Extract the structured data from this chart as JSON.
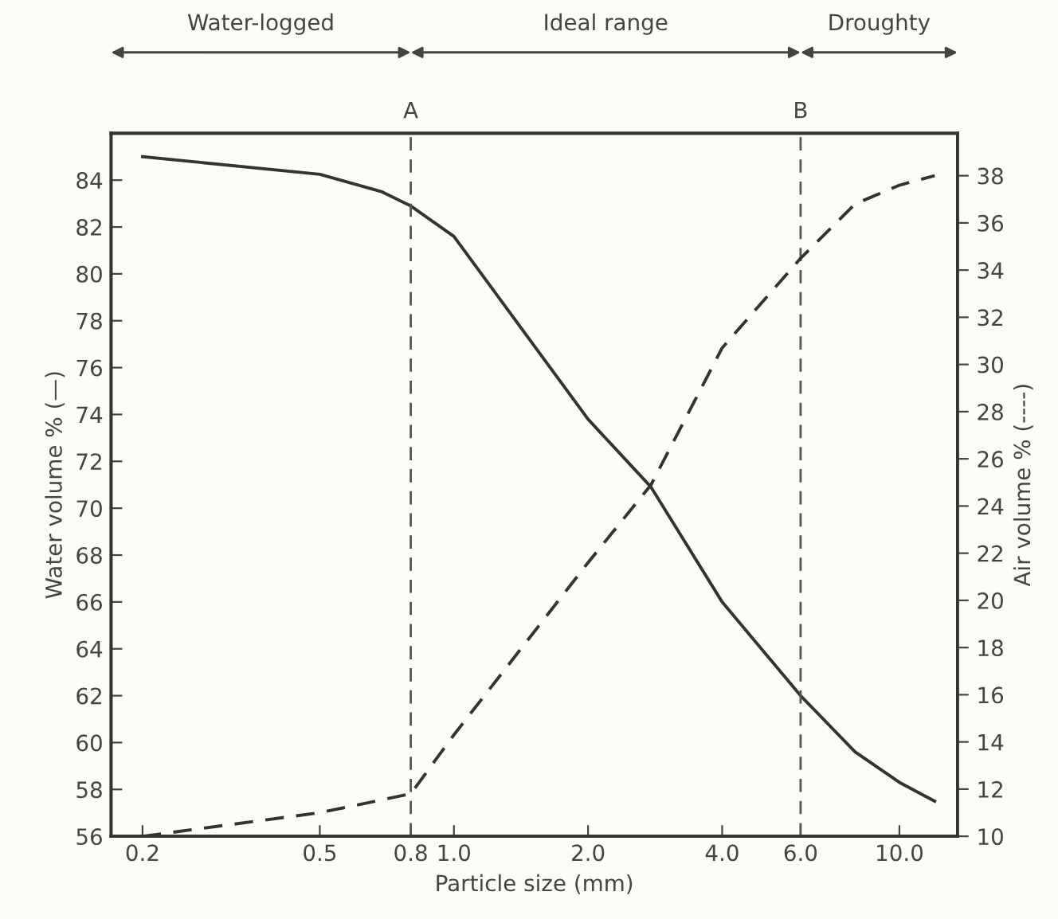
{
  "chart_data": {
    "type": "line",
    "xlabel": "Particle size (mm)",
    "ylabel": "Water volume % (—)",
    "y2label": "Air volume % (----)",
    "log": "x",
    "xlim": [
      0.17,
      13.5
    ],
    "xticks": [
      0.2,
      0.5,
      {
        "value": 0.8,
        "label": "0.8"
      },
      {
        "value": 1.0,
        "label": "1.0"
      },
      {
        "value": 2.0,
        "label": "2.0"
      },
      {
        "value": 4.0,
        "label": "4.0"
      },
      {
        "value": 6.0,
        "label": "6.0"
      },
      {
        "value": 10.0,
        "label": "10.0"
      }
    ],
    "ylim": [
      56,
      86
    ],
    "yticks": [
      56,
      58,
      60,
      62,
      64,
      66,
      68,
      70,
      72,
      74,
      76,
      78,
      80,
      82,
      84
    ],
    "y2lim": [
      10,
      39.8
    ],
    "y2ticks": [
      10,
      12,
      14,
      16,
      18,
      20,
      22,
      24,
      26,
      28,
      30,
      32,
      34,
      36,
      38
    ],
    "grid": false,
    "legend": false,
    "series": [
      {
        "color": "#333333",
        "line_style": "solid",
        "x": [
          0.2,
          0.5,
          0.69,
          0.8,
          1.0,
          2.0,
          2.77,
          4.0,
          6.0,
          7.95,
          10.0,
          12.0
        ],
        "values": [
          85.0,
          84.25,
          83.5,
          82.9,
          81.6,
          73.8,
          70.9,
          66.0,
          62.0,
          59.6,
          58.3,
          57.5
        ]
      },
      {
        "color": "#333333",
        "line_style": "dashed",
        "axis": "y2",
        "x": [
          0.2,
          0.5,
          0.8,
          1.0,
          2.0,
          2.77,
          4.0,
          6.0,
          7.95,
          10.0,
          12.0
        ],
        "values": [
          10.0,
          11.0,
          11.8,
          14.3,
          21.6,
          24.9,
          30.7,
          34.5,
          36.8,
          37.6,
          38.0
        ]
      }
    ],
    "ref_lines": [
      {
        "axis": "x",
        "value": 0.8,
        "label": "A",
        "line_style": "dashed",
        "color": "#555555"
      },
      {
        "axis": "x",
        "value": 6.0,
        "label": "B",
        "line_style": "dashed",
        "color": "#555555"
      }
    ],
    "annotations": [
      "Water-logged",
      "Ideal range",
      "Droughty"
    ]
  }
}
